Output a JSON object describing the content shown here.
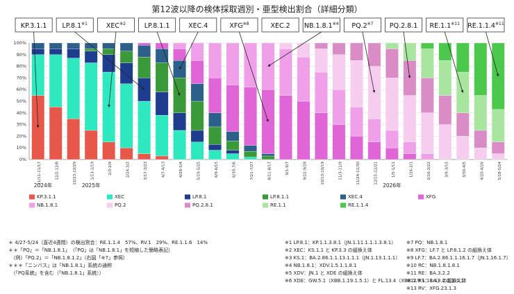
{
  "chart_data": {
    "type": "stacked_bar_100",
    "title": "第12波以降の検体採取週別・亜型検出割合（詳細分類）",
    "categories": [
      "11/11-11/17",
      "12/2-12/8",
      "12/23-12/29",
      "1/13-1/19",
      "2/3-2/9",
      "2/24-3/2",
      "3/17-3/23",
      "4/7-4/13",
      "4/28-5/4",
      "5/19-5/25",
      "6/9-6/15",
      "6/30-7/6",
      "7/21-7/27",
      "8/11-8/17",
      "9/1-9/7",
      "9/22-9/28",
      "10/13-10/19",
      "11/3-11/9",
      "11/24-11/30",
      "12/15-12/21",
      "1/5-1/11",
      "1/26-2/1",
      "2/16-2/22",
      "3/9-3/15",
      "3/30-4/5",
      "4/20-4/26",
      "5/18-5/24"
    ],
    "year_labels": [
      "2024年",
      "2025年",
      "2026年"
    ],
    "ylim": [
      0,
      100
    ],
    "yticks": [
      {
        "value": 0,
        "label": "0%"
      },
      {
        "value": 10,
        "label": "10%"
      },
      {
        "value": 20,
        "label": "20%"
      },
      {
        "value": 30,
        "label": "30%"
      },
      {
        "value": 40,
        "label": "40%"
      },
      {
        "value": 50,
        "label": "50%"
      },
      {
        "value": 60,
        "label": "60%"
      },
      {
        "value": 70,
        "label": "70%"
      },
      {
        "value": 80,
        "label": "80%"
      },
      {
        "value": 90,
        "label": "90%"
      },
      {
        "value": 100,
        "label": "100%"
      }
    ],
    "grid": true,
    "series": [
      {
        "name": "KP.3.1.1",
        "color": "#e8584a",
        "values": [
          55,
          45,
          35,
          25,
          15,
          10,
          5,
          3,
          0,
          0,
          0,
          0,
          0,
          0,
          0,
          0,
          0,
          0,
          0,
          0,
          0,
          0,
          0,
          0,
          0,
          0,
          0
        ]
      },
      {
        "name": "XEC",
        "color": "#2ee8c0",
        "values": [
          35,
          45,
          52,
          58,
          60,
          55,
          45,
          35,
          25,
          15,
          8,
          5,
          2,
          0,
          0,
          0,
          0,
          0,
          0,
          0,
          0,
          0,
          0,
          0,
          0,
          0,
          0
        ]
      },
      {
        "name": "LP.8.1",
        "color": "#1f3d8f",
        "values": [
          5,
          5,
          8,
          10,
          15,
          18,
          20,
          20,
          15,
          10,
          5,
          3,
          0,
          0,
          0,
          0,
          0,
          0,
          0,
          0,
          0,
          0,
          0,
          0,
          0,
          0,
          0
        ]
      },
      {
        "name": "LP.8.1.1",
        "color": "#3a9a3a",
        "values": [
          0,
          0,
          0,
          2,
          5,
          10,
          18,
          25,
          30,
          25,
          15,
          8,
          5,
          3,
          0,
          0,
          0,
          0,
          0,
          0,
          0,
          0,
          0,
          0,
          0,
          0,
          0
        ]
      },
      {
        "name": "XEC.4",
        "color": "#2c5f8a",
        "values": [
          5,
          5,
          5,
          5,
          5,
          7,
          10,
          12,
          15,
          15,
          12,
          8,
          5,
          2,
          0,
          0,
          0,
          0,
          0,
          0,
          0,
          0,
          0,
          0,
          0,
          0,
          0
        ]
      },
      {
        "name": "XFG",
        "color": "#e066d8",
        "values": [
          0,
          0,
          0,
          0,
          0,
          0,
          2,
          5,
          10,
          20,
          30,
          40,
          50,
          55,
          55,
          50,
          40,
          30,
          20,
          15,
          10,
          5,
          0,
          0,
          0,
          0,
          0
        ]
      },
      {
        "name": "NB.1.8.1",
        "color": "#f0a0e8",
        "values": [
          0,
          0,
          0,
          0,
          0,
          0,
          0,
          0,
          5,
          15,
          30,
          36,
          38,
          40,
          40,
          38,
          35,
          30,
          25,
          20,
          15,
          10,
          5,
          0,
          0,
          0,
          0
        ]
      },
      {
        "name": "PQ.2",
        "color": "#f6cdee",
        "values": [
          0,
          0,
          0,
          0,
          0,
          0,
          0,
          0,
          0,
          0,
          0,
          0,
          0,
          0,
          5,
          12,
          20,
          30,
          40,
          45,
          45,
          40,
          35,
          30,
          20,
          10,
          5
        ]
      },
      {
        "name": "PQ.2.8.1",
        "color": "#d98cc6",
        "values": [
          0,
          0,
          0,
          0,
          0,
          0,
          0,
          0,
          0,
          0,
          0,
          0,
          0,
          0,
          0,
          0,
          5,
          10,
          15,
          20,
          25,
          30,
          30,
          25,
          20,
          15,
          10
        ]
      },
      {
        "name": "RE.1.1",
        "color": "#a8e6a0",
        "values": [
          0,
          0,
          0,
          0,
          0,
          0,
          0,
          0,
          0,
          0,
          0,
          0,
          0,
          0,
          0,
          0,
          0,
          0,
          0,
          0,
          5,
          15,
          25,
          30,
          35,
          30,
          28
        ]
      },
      {
        "name": "RE.1.1.4",
        "color": "#4cc94c",
        "values": [
          0,
          0,
          0,
          0,
          0,
          0,
          0,
          0,
          0,
          0,
          0,
          0,
          0,
          0,
          0,
          0,
          0,
          0,
          0,
          0,
          0,
          0,
          5,
          15,
          25,
          45,
          57
        ]
      }
    ],
    "callouts": [
      {
        "label": "KP.3.1.1"
      },
      {
        "label": "LP.8.1",
        "note": "※1"
      },
      {
        "label": "XEC",
        "note": "※2"
      },
      {
        "label": "LP.8.1.1"
      },
      {
        "label": "XEC.4"
      },
      {
        "label": "XFG",
        "note": "※8"
      },
      {
        "label": "XEC.2"
      },
      {
        "label": "NB.1.8.1",
        "note": "※4"
      },
      {
        "label": "PQ.2",
        "note": "※7"
      },
      {
        "label": "PQ.2.8.1"
      },
      {
        "label": "RE.1.1",
        "note": "※11"
      },
      {
        "label": "RE.1.1.4",
        "note": "※11"
      }
    ],
    "notes_left": [
      "＊ 4/27-5/24（直近4週間）の検出割合：RE.1.1.4　57%、RV.1　29%、RE.1.1.6　14%",
      "＊＊「PQ」＝「NB.1.8.1」　（「PQ」は「NB.1.8.1」を短縮した簡略表記）",
      "　（例）「PQ.2」＝「NB.1.8.1.2」（右図「※7」参照）",
      "＊＊＊「ニンバス」は「NB.1.8.1」系統の通称",
      "　（「PQ系統」を含む（「NB.1.8.1」系統））"
    ],
    "notes_mid": [
      "※1 LP.8.1：KP.1.1.3.8.1（JN.1.11.1.1.1.3.8.1）",
      "※2 XEC：KS.1.1 と KP.3.3 の組換え体",
      "※3 KS.1：BA.2.86.1.1.13.1.1.1（JN.1.13.1.1.1）",
      "※4 NB.1.8.1：XDV.1.5.1.1.8.1",
      "※5 XDV：JN.1 と XDE の組換え体",
      "※6 XDE：GW.5.1（XBB.1.19.1.5.1）と FL.13.4（XBB.1.9.1.13.4）の組換え体"
    ],
    "notes_right": [
      "※7 PQ：NB.1.8.1",
      "※8 XFG：LF.7 と LP.8.1.2 の組換え体",
      "※9 LF.7：BA.2.86.1.1.16.1.7（JN.1.16.1.7）",
      "※10 RC：NB.1.8.1.8.1",
      "※11 RE：BA.3.2.2",
      "※12 RS：BA.3.2.2.1.1.1",
      "※13 RV：XFG.23.1.3"
    ]
  }
}
